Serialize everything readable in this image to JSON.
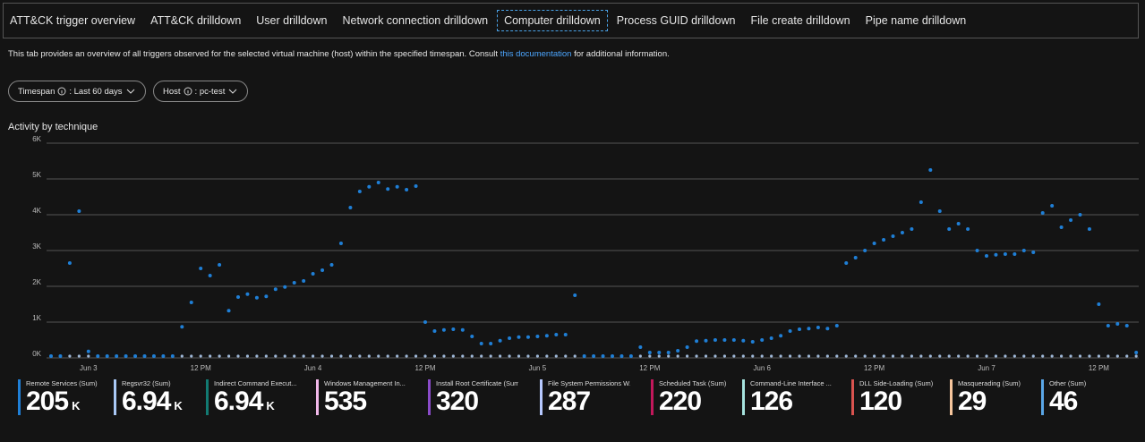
{
  "tabs": {
    "items": [
      "ATT&CK trigger overview",
      "ATT&CK drilldown",
      "User drilldown",
      "Network connection drilldown",
      "Computer drilldown",
      "Process GUID drilldown",
      "File create drilldown",
      "Pipe name drilldown"
    ],
    "selected": 4
  },
  "description": {
    "before": "This tab provides an overview of all triggers observed for the selected virtual machine (host) within the specified timespan. Consult ",
    "link": "this documentation",
    "after": " for additional information."
  },
  "filters": [
    {
      "label": "Timespan",
      "value": ": Last 60 days"
    },
    {
      "label": "Host",
      "value": ": pc-test"
    }
  ],
  "chart_data": {
    "type": "scatter",
    "title": "Activity by technique",
    "categories": [
      null,
      null,
      null,
      null,
      "Jun 3",
      null,
      null,
      null,
      null,
      null,
      null,
      null,
      null,
      null,
      null,
      null,
      "12 PM",
      null,
      null,
      null,
      null,
      null,
      null,
      null,
      null,
      null,
      null,
      null,
      "Jun 4",
      null,
      null,
      null,
      null,
      null,
      null,
      null,
      null,
      null,
      null,
      null,
      "12 PM",
      null,
      null,
      null,
      null,
      null,
      null,
      null,
      null,
      null,
      null,
      null,
      "Jun 5",
      null,
      null,
      null,
      null,
      null,
      null,
      null,
      null,
      null,
      null,
      null,
      "12 PM",
      null,
      null,
      null,
      null,
      null,
      null,
      null,
      null,
      null,
      null,
      null,
      "Jun 6",
      null,
      null,
      null,
      null,
      null,
      null,
      null,
      null,
      null,
      null,
      null,
      "12 PM",
      null,
      null,
      null,
      null,
      null,
      null,
      null,
      null,
      null,
      null,
      null,
      "Jun 7",
      null,
      null,
      null,
      null,
      null,
      null,
      null,
      null,
      null,
      null,
      null,
      "12 PM",
      null,
      null,
      null,
      null
    ],
    "series": [
      {
        "color": "#1f7fd6",
        "values": [
          50,
          50,
          2650,
          4100,
          180,
          50,
          50,
          50,
          50,
          50,
          50,
          50,
          50,
          50,
          870,
          1550,
          2500,
          2300,
          2600,
          1320,
          1700,
          1780,
          1680,
          1720,
          1920,
          1980,
          2100,
          2150,
          2350,
          2450,
          2600,
          3200,
          4200,
          4650,
          4780,
          4900,
          4720,
          4780,
          4700,
          4800,
          1000,
          750,
          780,
          800,
          780,
          600,
          400,
          400,
          480,
          550,
          580,
          580,
          600,
          620,
          650,
          650,
          1750,
          50,
          50,
          50,
          50,
          50,
          50,
          300,
          150,
          150,
          150,
          200,
          300,
          470,
          480,
          500,
          500,
          500,
          480,
          450,
          500,
          550,
          620,
          750,
          800,
          820,
          850,
          820,
          900,
          2650,
          2800,
          3000,
          3200,
          3300,
          3400,
          3500,
          3600,
          4350,
          5250,
          4100,
          3600,
          3750,
          3600,
          3000,
          2850,
          2880,
          2900,
          2900,
          3000,
          2950,
          4050,
          4250,
          3650,
          3850,
          4000,
          3600,
          1500,
          900,
          950,
          900,
          150
        ]
      }
    ],
    "ylim": [
      0,
      6000
    ],
    "yticks": [
      {
        "value": 0,
        "label": "0K"
      },
      {
        "value": 1000,
        "label": "1K"
      },
      {
        "value": 2000,
        "label": "2K"
      },
      {
        "value": 3000,
        "label": "3K"
      },
      {
        "value": 4000,
        "label": "4K"
      },
      {
        "value": 5000,
        "label": "5K"
      },
      {
        "value": 6000,
        "label": "6K"
      }
    ],
    "grid": true
  },
  "tiles": [
    {
      "label": "Remote Services (Sum)",
      "value": 205,
      "unit": "K",
      "color": "#1f7fd6"
    },
    {
      "label": "Regsvr32 (Sum)",
      "value": 6.94,
      "unit": "K",
      "color": "#a9c8f5"
    },
    {
      "label": "Indirect Command Execut...",
      "value": 6.94,
      "unit": "K",
      "color": "#127a72"
    },
    {
      "label": "Windows Management In...",
      "value": 535,
      "color": "#f2b8ea"
    },
    {
      "label": "Install Root Certificate (Sum)",
      "value": 320,
      "color": "#8a4bc9"
    },
    {
      "label": "File System Permissions W...",
      "value": 287,
      "color": "#b7c9ff"
    },
    {
      "label": "Scheduled Task (Sum)",
      "value": 220,
      "color": "#c2185b"
    },
    {
      "label": "Command-Line Interface ...",
      "value": 126,
      "color": "#a6e3de"
    },
    {
      "label": "DLL Side-Loading (Sum)",
      "value": 120,
      "color": "#d9534f"
    },
    {
      "label": "Masquerading (Sum)",
      "value": 29,
      "color": "#f6c59c"
    },
    {
      "label": "Other (Sum)",
      "value": 46,
      "color": "#5aa6e6"
    }
  ]
}
